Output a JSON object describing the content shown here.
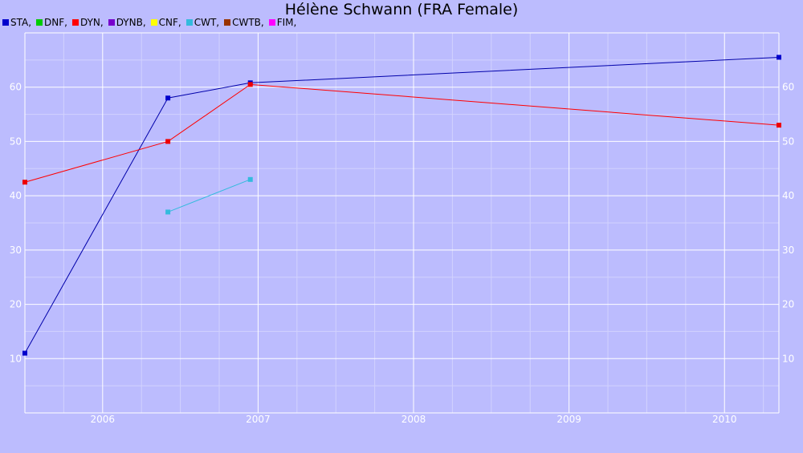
{
  "chart_data": {
    "type": "line",
    "title": "Hélène Schwann (FRA Female)",
    "xlabel": "",
    "ylabel": "",
    "legend_position": "top-left",
    "grid": true,
    "xlim": [
      2005.5,
      2010.35
    ],
    "ylim": [
      0,
      70
    ],
    "x_ticks": [
      2006,
      2007,
      2008,
      2009,
      2010
    ],
    "y_ticks": [
      10,
      20,
      30,
      40,
      50,
      60
    ],
    "legend": [
      {
        "label": "STA,",
        "color": "#0000cc"
      },
      {
        "label": "DNF,",
        "color": "#00cc00"
      },
      {
        "label": "DYN,",
        "color": "#ff0000"
      },
      {
        "label": "DYNB,",
        "color": "#7700cc"
      },
      {
        "label": "CNF,",
        "color": "#ffff00"
      },
      {
        "label": "CWT,",
        "color": "#33bbdd"
      },
      {
        "label": "CWTB,",
        "color": "#993300"
      },
      {
        "label": "FIM,",
        "color": "#ff00ff"
      }
    ],
    "series": [
      {
        "name": "STA",
        "color": "#0000aa",
        "marker_color": "#0000cc",
        "x": [
          2005.5,
          2006.42,
          2006.95,
          2010.35
        ],
        "values": [
          11,
          58,
          60.8,
          65.5
        ]
      },
      {
        "name": "DYN",
        "color": "#ff0000",
        "marker_color": "#ee0000",
        "x": [
          2005.5,
          2006.42,
          2006.95,
          2010.35
        ],
        "values": [
          42.5,
          50,
          60.5,
          53
        ]
      },
      {
        "name": "CWT",
        "color": "#33bbdd",
        "marker_color": "#33bbdd",
        "x": [
          2006.42,
          2006.95
        ],
        "values": [
          37,
          43
        ]
      }
    ]
  }
}
